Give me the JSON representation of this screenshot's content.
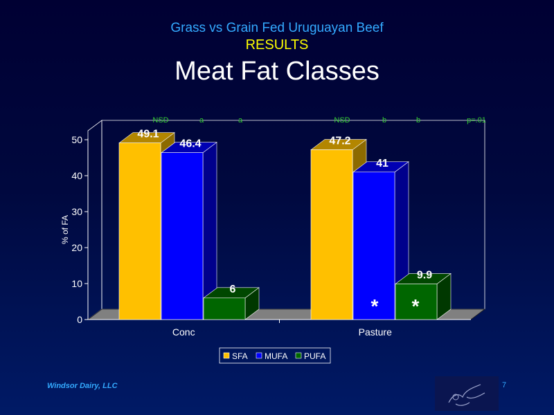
{
  "header": {
    "subtitle": "Grass vs Grain Fed Uruguayan Beef",
    "section": "RESULTS",
    "title": "Meat Fat Classes"
  },
  "footer": {
    "company": "Windsor Dairy, LLC",
    "page_number": "7"
  },
  "chart_data": {
    "type": "bar",
    "categories": [
      "Conc",
      "Pasture"
    ],
    "series": [
      {
        "name": "SFA",
        "values": [
          49.1,
          47.2
        ],
        "color": "#ffc000"
      },
      {
        "name": "MUFA",
        "values": [
          46.4,
          41
        ],
        "color": "#0000ff"
      },
      {
        "name": "PUFA",
        "values": [
          6,
          9.9
        ],
        "color": "#006600"
      }
    ],
    "data_labels": [
      [
        "49.1",
        "46.4",
        "6"
      ],
      [
        "47.2",
        "41",
        "9.9"
      ]
    ],
    "ylabel": "% of FA",
    "ylim": [
      0,
      50
    ],
    "yticks": [
      "0",
      "10",
      "20",
      "30",
      "40",
      "50"
    ],
    "significance": [
      "NSD",
      "a",
      "a",
      "NSD",
      "b",
      "b",
      "p=.01"
    ],
    "significance_color": "#33cc33",
    "asterisks": [
      "*",
      "*"
    ],
    "legend_position": "bottom",
    "grid": false
  }
}
